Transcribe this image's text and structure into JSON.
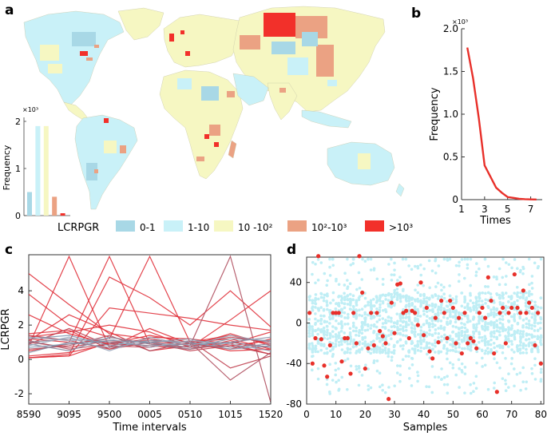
{
  "panels": {
    "a": {
      "label": "a"
    },
    "b": {
      "label": "b"
    },
    "c": {
      "label": "c"
    },
    "d": {
      "label": "d"
    }
  },
  "legend": {
    "title": "LCRPGR",
    "items": [
      {
        "label": "0-1",
        "color": "#a8d8e6"
      },
      {
        "label": "1-10",
        "color": "#c9f1f8"
      },
      {
        "label": "10 -10²",
        "color": "#f6f7c2"
      },
      {
        "label": "10²-10³",
        "color": "#eba283"
      },
      {
        "label": ">10³",
        "color": "#f2302a"
      }
    ]
  },
  "map": {
    "ocean_color": "#ffffff",
    "land_palette": [
      "#c9f1f8",
      "#a8d8e6",
      "#f6f7c2",
      "#eba283",
      "#f2302a"
    ]
  },
  "chart_data": [
    {
      "panel": "a-inset",
      "type": "bar",
      "ylabel": "Frequency",
      "yscale_label": "×10³",
      "categories": [
        "0-1",
        "1-10",
        "10-10²",
        "10²-10³",
        ">10³"
      ],
      "values": [
        0.5,
        1.9,
        1.9,
        0.4,
        0.05
      ],
      "colors": [
        "#a8d8e6",
        "#c9f1f8",
        "#f6f7c2",
        "#eba283",
        "#f2302a"
      ],
      "ylim": [
        0,
        2
      ],
      "yticks": [
        "0",
        "1",
        "2"
      ]
    },
    {
      "panel": "b",
      "type": "line",
      "xlabel": "Times",
      "ylabel": "Frequency",
      "yscale_label": "×10³",
      "x": [
        1.5,
        2,
        2.5,
        3,
        3.5,
        4,
        4.5,
        5,
        5.5,
        6,
        6.5,
        7,
        7.5
      ],
      "y": [
        1.78,
        1.42,
        0.95,
        0.4,
        0.27,
        0.14,
        0.08,
        0.03,
        0.02,
        0.01,
        0.005,
        0.003,
        0.002
      ],
      "xlim": [
        1,
        8
      ],
      "ylim": [
        0,
        2.0
      ],
      "xticks": [
        "1",
        "3",
        "5",
        "7"
      ],
      "yticks": [
        "0",
        "0.5",
        "1.0",
        "1.5",
        "2.0"
      ],
      "color": "#e8302a"
    },
    {
      "panel": "c",
      "type": "line",
      "xlabel": "Time intervals",
      "ylabel": "LCRPGR",
      "categories": [
        "8590",
        "9095",
        "9500",
        "0005",
        "0510",
        "1015",
        "1520"
      ],
      "ylim": [
        -2.6,
        6.1
      ],
      "yticks": [
        "-2",
        "0",
        "2",
        "4"
      ],
      "series": [
        {
          "values": [
            0.1,
            0.2,
            3.0,
            2.7,
            2.4,
            2.0,
            1.7
          ],
          "color": "#e0303a"
        },
        {
          "values": [
            0.1,
            0.3,
            4.8,
            3.6,
            2.0,
            4.0,
            1.9
          ],
          "color": "#e0303a"
        },
        {
          "values": [
            0.1,
            0.2,
            1.0,
            1.1,
            1.0,
            1.4,
            0.9
          ],
          "color": "#e0303a"
        },
        {
          "values": [
            0.2,
            0.4,
            0.9,
            0.8,
            0.6,
            0.9,
            0.3
          ],
          "color": "#e0303a"
        },
        {
          "values": [
            5.0,
            3.2,
            1.5,
            1.2,
            0.8,
            1.0,
            0.7
          ],
          "color": "#e0303a"
        },
        {
          "values": [
            3.8,
            2.0,
            1.3,
            0.9,
            0.6,
            1.1,
            0.5
          ],
          "color": "#e0303a"
        },
        {
          "values": [
            2.6,
            1.5,
            0.9,
            1.4,
            1.0,
            1.2,
            0.6
          ],
          "color": "#e0303a"
        },
        {
          "values": [
            1.5,
            1.7,
            0.6,
            1.3,
            1.2,
            0.9,
            1.6
          ],
          "color": "#e0303a"
        },
        {
          "values": [
            1.1,
            2.6,
            1.6,
            0.5,
            0.8,
            1.5,
            0.8
          ],
          "color": "#e0303a"
        },
        {
          "values": [
            0.8,
            6.0,
            0.7,
            1.8,
            0.9,
            0.6,
            1.2
          ],
          "color": "#e0303a"
        },
        {
          "values": [
            1.2,
            1.0,
            6.0,
            0.9,
            0.7,
            0.8,
            1.1
          ],
          "color": "#e0303a"
        },
        {
          "values": [
            0.5,
            0.9,
            1.2,
            6.0,
            1.0,
            0.5,
            0.6
          ],
          "color": "#e0303a"
        },
        {
          "values": [
            1.3,
            1.6,
            2.0,
            1.6,
            0.7,
            2.3,
            4.0
          ],
          "color": "#e0303a"
        },
        {
          "values": [
            1.0,
            0.7,
            1.1,
            1.0,
            0.5,
            0.8,
            0.3
          ],
          "color": "#c04050"
        },
        {
          "values": [
            0.9,
            1.8,
            0.8,
            0.7,
            1.1,
            -0.5,
            0.2
          ],
          "color": "#c04050"
        },
        {
          "values": [
            1.4,
            1.1,
            0.6,
            1.0,
            0.9,
            1.3,
            1.0
          ],
          "color": "#c04050"
        },
        {
          "values": [
            0.6,
            0.8,
            1.4,
            0.5,
            1.0,
            -1.2,
            0.4
          ],
          "color": "#b05060"
        },
        {
          "values": [
            1.1,
            0.6,
            0.9,
            1.2,
            0.8,
            6.0,
            -2.5
          ],
          "color": "#b05060"
        },
        {
          "values": [
            0.4,
            1.0,
            0.7,
            1.0,
            1.2,
            0.7,
            0.9
          ],
          "color": "#8a8aa0"
        },
        {
          "values": [
            1.0,
            1.2,
            1.0,
            0.8,
            0.9,
            1.0,
            0.7
          ],
          "color": "#8a8aa0"
        },
        {
          "values": [
            0.7,
            0.9,
            1.1,
            1.0,
            0.7,
            1.2,
            1.1
          ],
          "color": "#7f98b0"
        },
        {
          "values": [
            1.2,
            1.4,
            0.8,
            1.1,
            1.0,
            0.6,
            0.8
          ],
          "color": "#7f98b0"
        },
        {
          "values": [
            0.9,
            0.5,
            1.3,
            0.9,
            0.6,
            1.0,
            1.3
          ],
          "color": "#8a8aa0"
        },
        {
          "values": [
            1.3,
            1.1,
            1.2,
            0.7,
            1.1,
            0.9,
            0.5
          ],
          "color": "#9aa7bb"
        },
        {
          "values": [
            0.8,
            1.3,
            0.5,
            1.3,
            0.8,
            1.4,
            1.0
          ],
          "color": "#9aa7bb"
        }
      ]
    },
    {
      "panel": "d",
      "type": "scatter",
      "xlabel": "Samples",
      "xlim": [
        0,
        81
      ],
      "ylim": [
        -80,
        65
      ],
      "xticks": [
        "0",
        "10",
        "20",
        "30",
        "40",
        "50",
        "60",
        "70",
        "80"
      ],
      "yticks": [
        "-80",
        "-40",
        "0",
        "40"
      ],
      "background_color": "#bfeef5",
      "highlight_color": "#e8302a",
      "highlight_points": [
        [
          1,
          10
        ],
        [
          2,
          -40
        ],
        [
          3,
          -15
        ],
        [
          4,
          66
        ],
        [
          5,
          -16
        ],
        [
          6,
          -42
        ],
        [
          7,
          -53
        ],
        [
          8,
          -22
        ],
        [
          9,
          10
        ],
        [
          10,
          10
        ],
        [
          11,
          10
        ],
        [
          12,
          -38
        ],
        [
          13,
          -15
        ],
        [
          14,
          -15
        ],
        [
          15,
          -50
        ],
        [
          16,
          10
        ],
        [
          17,
          -20
        ],
        [
          18,
          66
        ],
        [
          19,
          30
        ],
        [
          20,
          -45
        ],
        [
          21,
          -25
        ],
        [
          22,
          10
        ],
        [
          23,
          -22
        ],
        [
          24,
          10
        ],
        [
          25,
          -8
        ],
        [
          26,
          -13
        ],
        [
          27,
          -20
        ],
        [
          28,
          -75
        ],
        [
          29,
          20
        ],
        [
          30,
          -10
        ],
        [
          31,
          38
        ],
        [
          32,
          39
        ],
        [
          33,
          10
        ],
        [
          34,
          12
        ],
        [
          35,
          -15
        ],
        [
          36,
          12
        ],
        [
          37,
          10
        ],
        [
          38,
          -2
        ],
        [
          39,
          40
        ],
        [
          40,
          -12
        ],
        [
          41,
          15
        ],
        [
          42,
          -28
        ],
        [
          43,
          -35
        ],
        [
          44,
          5
        ],
        [
          45,
          -19
        ],
        [
          46,
          22
        ],
        [
          47,
          10
        ],
        [
          48,
          -15
        ],
        [
          49,
          22
        ],
        [
          50,
          15
        ],
        [
          51,
          -20
        ],
        [
          52,
          5
        ],
        [
          53,
          -30
        ],
        [
          54,
          10
        ],
        [
          55,
          -20
        ],
        [
          56,
          -15
        ],
        [
          57,
          -18
        ],
        [
          58,
          -25
        ],
        [
          59,
          10
        ],
        [
          60,
          15
        ],
        [
          61,
          5
        ],
        [
          62,
          45
        ],
        [
          63,
          22
        ],
        [
          64,
          -30
        ],
        [
          65,
          -68
        ],
        [
          66,
          10
        ],
        [
          67,
          15
        ],
        [
          68,
          -20
        ],
        [
          69,
          10
        ],
        [
          70,
          15
        ],
        [
          71,
          48
        ],
        [
          72,
          15
        ],
        [
          73,
          10
        ],
        [
          74,
          32
        ],
        [
          75,
          10
        ],
        [
          76,
          20
        ],
        [
          77,
          15
        ],
        [
          78,
          -22
        ],
        [
          79,
          10
        ],
        [
          80,
          -40
        ]
      ]
    }
  ]
}
